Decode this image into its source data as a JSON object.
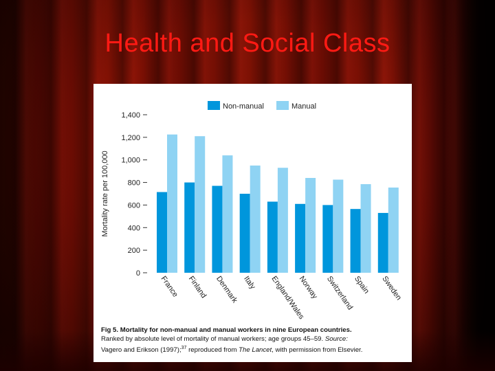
{
  "slide": {
    "title": "Health and Social Class"
  },
  "colors": {
    "non_manual": "#0096dc",
    "manual": "#8fd3f3",
    "title": "#ff1a14"
  },
  "chart_data": {
    "type": "bar",
    "ylabel": "Mortality rate per 100,000",
    "ylim": [
      0,
      1400
    ],
    "yticks": [
      0,
      200,
      400,
      600,
      800,
      1000,
      1200,
      1400
    ],
    "ytick_labels": [
      "0",
      "200",
      "400",
      "600",
      "800",
      "1,000",
      "1,200",
      "1,400"
    ],
    "categories": [
      "France",
      "Finland",
      "Denmark",
      "Italy",
      "England/Wales",
      "Norway",
      "Switzerland",
      "Spain",
      "Sweden"
    ],
    "series": [
      {
        "name": "Non-manual",
        "values": [
          715,
          800,
          770,
          700,
          630,
          610,
          600,
          565,
          530
        ]
      },
      {
        "name": "Manual",
        "values": [
          1225,
          1210,
          1040,
          950,
          930,
          840,
          825,
          785,
          755
        ]
      }
    ],
    "legend_position": "top-center",
    "grid": false
  },
  "caption": {
    "fig_label": "Fig 5.",
    "bold_text": "Mortality for non-manual and manual workers in nine European countries.",
    "line2": "Ranked by absolute level of mortality of manual workers; age groups 45–59.",
    "source_label": "Source:",
    "source_text": "Vagero and Erikson (1997);",
    "ref": "37",
    "reproduced": "reproduced from",
    "journal": "The Lancet",
    "permission": ", with permission from Elsevier."
  }
}
